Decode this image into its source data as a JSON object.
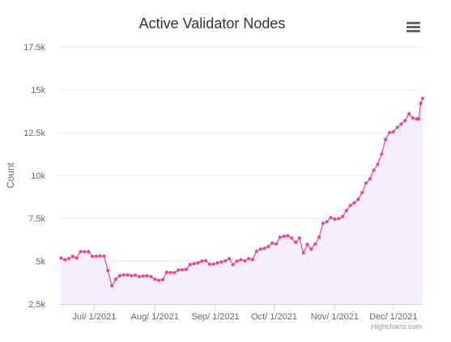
{
  "chart_data": {
    "type": "area",
    "title": "Active Validator Nodes",
    "ylabel": "Count",
    "xlabel": "",
    "ylim": [
      2500,
      17500
    ],
    "yticks": [
      2500,
      5000,
      7500,
      10000,
      12500,
      15000,
      17500
    ],
    "ytick_labels": [
      "2.5k",
      "5k",
      "7.5k",
      "10k",
      "12.5k",
      "15k",
      "17.5k"
    ],
    "xlim": [
      "2021-06-13",
      "2021-12-16"
    ],
    "xticks": [
      "2021-07-01",
      "2021-08-01",
      "2021-09-01",
      "2021-10-01",
      "2021-11-01",
      "2021-12-01"
    ],
    "xtick_labels": [
      "Jul/ 1/2021",
      "Aug/ 1/2021",
      "Sep/ 1/2021",
      "Oct/ 1/2021",
      "Nov/ 1/2021",
      "Dec/ 1/2021"
    ],
    "grid": "horizontal",
    "line_color": "#f0447e",
    "fill_color": "#f3e8ff",
    "series": [
      {
        "points": [
          [
            "2021-06-14",
            5180
          ],
          [
            "2021-06-16",
            5080
          ],
          [
            "2021-06-18",
            5150
          ],
          [
            "2021-06-20",
            5280
          ],
          [
            "2021-06-22",
            5180
          ],
          [
            "2021-06-24",
            5560
          ],
          [
            "2021-06-26",
            5560
          ],
          [
            "2021-06-28",
            5560
          ],
          [
            "2021-06-30",
            5280
          ],
          [
            "2021-07-02",
            5290
          ],
          [
            "2021-07-04",
            5300
          ],
          [
            "2021-07-06",
            5300
          ],
          [
            "2021-07-08",
            4450
          ],
          [
            "2021-07-10",
            3560
          ],
          [
            "2021-07-12",
            3950
          ],
          [
            "2021-07-14",
            4150
          ],
          [
            "2021-07-16",
            4200
          ],
          [
            "2021-07-18",
            4190
          ],
          [
            "2021-07-20",
            4150
          ],
          [
            "2021-07-22",
            4180
          ],
          [
            "2021-07-24",
            4100
          ],
          [
            "2021-07-26",
            4130
          ],
          [
            "2021-07-28",
            4150
          ],
          [
            "2021-07-30",
            4100
          ],
          [
            "2021-08-01",
            3950
          ],
          [
            "2021-08-03",
            3880
          ],
          [
            "2021-08-05",
            3920
          ],
          [
            "2021-08-07",
            4350
          ],
          [
            "2021-08-09",
            4340
          ],
          [
            "2021-08-11",
            4330
          ],
          [
            "2021-08-13",
            4480
          ],
          [
            "2021-08-15",
            4500
          ],
          [
            "2021-08-17",
            4520
          ],
          [
            "2021-08-19",
            4800
          ],
          [
            "2021-08-21",
            4850
          ],
          [
            "2021-08-23",
            4900
          ],
          [
            "2021-08-25",
            5000
          ],
          [
            "2021-08-27",
            5030
          ],
          [
            "2021-08-29",
            4820
          ],
          [
            "2021-08-31",
            4830
          ],
          [
            "2021-09-02",
            4900
          ],
          [
            "2021-09-04",
            4950
          ],
          [
            "2021-09-06",
            5020
          ],
          [
            "2021-09-08",
            5150
          ],
          [
            "2021-09-10",
            4800
          ],
          [
            "2021-09-12",
            5000
          ],
          [
            "2021-09-14",
            5080
          ],
          [
            "2021-09-16",
            5020
          ],
          [
            "2021-09-18",
            5150
          ],
          [
            "2021-09-20",
            5090
          ],
          [
            "2021-09-22",
            5580
          ],
          [
            "2021-09-24",
            5700
          ],
          [
            "2021-09-26",
            5750
          ],
          [
            "2021-09-28",
            5850
          ],
          [
            "2021-09-30",
            6050
          ],
          [
            "2021-10-02",
            6000
          ],
          [
            "2021-10-04",
            6400
          ],
          [
            "2021-10-06",
            6450
          ],
          [
            "2021-10-08",
            6480
          ],
          [
            "2021-10-10",
            6350
          ],
          [
            "2021-10-12",
            6100
          ],
          [
            "2021-10-14",
            6350
          ],
          [
            "2021-10-16",
            5480
          ],
          [
            "2021-10-18",
            5980
          ],
          [
            "2021-10-20",
            5700
          ],
          [
            "2021-10-22",
            6000
          ],
          [
            "2021-10-24",
            6400
          ],
          [
            "2021-10-26",
            7200
          ],
          [
            "2021-10-28",
            7300
          ],
          [
            "2021-10-30",
            7550
          ],
          [
            "2021-11-01",
            7450
          ],
          [
            "2021-11-03",
            7480
          ],
          [
            "2021-11-05",
            7600
          ],
          [
            "2021-11-07",
            7950
          ],
          [
            "2021-11-09",
            8250
          ],
          [
            "2021-11-11",
            8400
          ],
          [
            "2021-11-13",
            8600
          ],
          [
            "2021-11-15",
            9000
          ],
          [
            "2021-11-17",
            9550
          ],
          [
            "2021-11-19",
            9800
          ],
          [
            "2021-11-21",
            10300
          ],
          [
            "2021-11-23",
            10650
          ],
          [
            "2021-11-25",
            11250
          ],
          [
            "2021-11-27",
            12100
          ],
          [
            "2021-11-29",
            12500
          ],
          [
            "2021-12-01",
            12550
          ],
          [
            "2021-12-03",
            12800
          ],
          [
            "2021-12-05",
            13000
          ],
          [
            "2021-12-07",
            13200
          ],
          [
            "2021-12-09",
            13600
          ],
          [
            "2021-12-11",
            13350
          ],
          [
            "2021-12-13",
            13300
          ],
          [
            "2021-12-14",
            13300
          ],
          [
            "2021-12-15",
            14200
          ],
          [
            "2021-12-16",
            14500
          ]
        ]
      }
    ]
  },
  "menu_icon": "hamburger-menu-icon",
  "credits": "Highcharts.com"
}
